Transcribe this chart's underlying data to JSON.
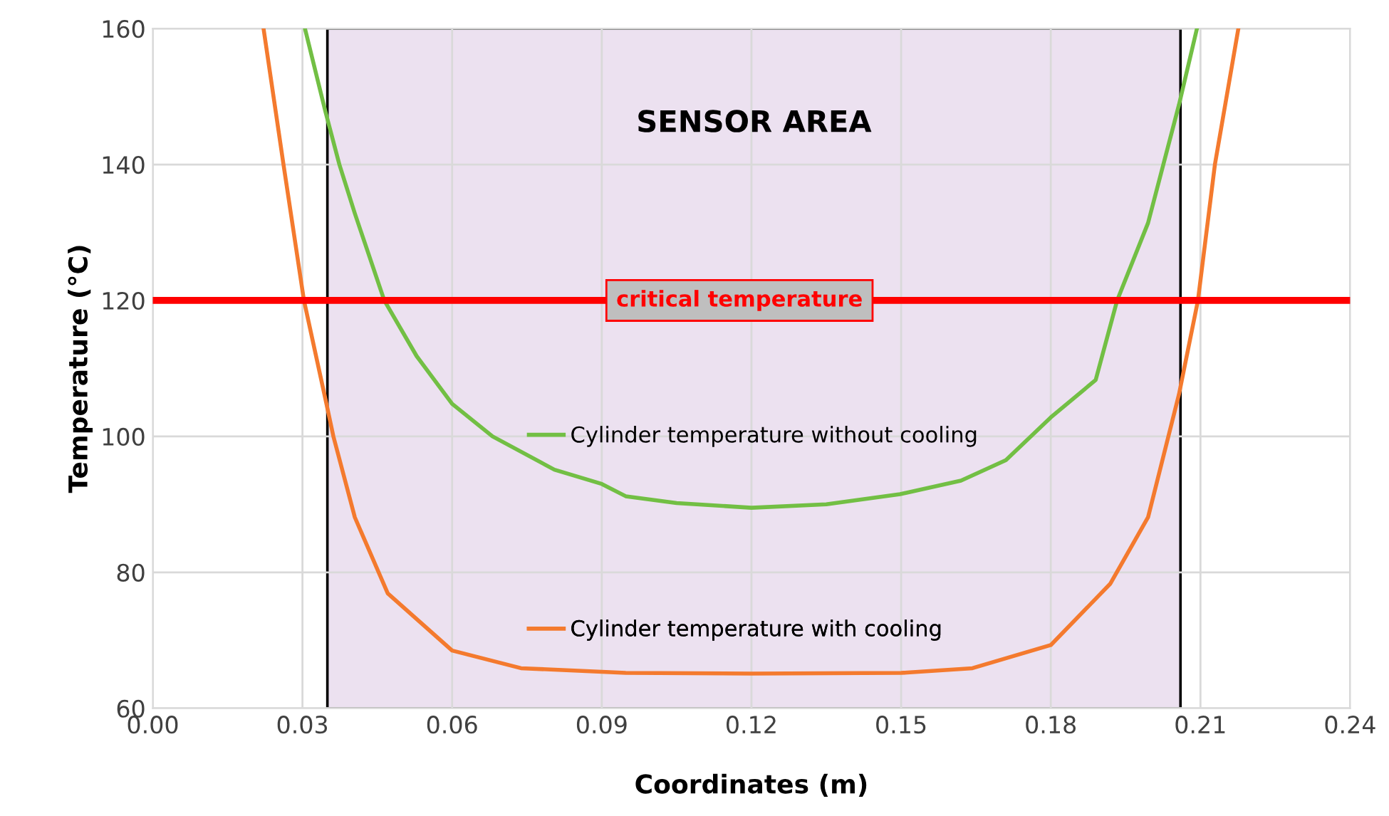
{
  "chart_data": {
    "type": "line",
    "xlabel": "Coordinates (m)",
    "ylabel": "Temperature (°C)",
    "xlim": [
      0,
      0.24
    ],
    "xticks": [
      {
        "value": 0,
        "label": "0.00"
      },
      {
        "value": 0.03,
        "label": "0.03"
      },
      {
        "value": 0.06,
        "label": "0.06"
      },
      {
        "value": 0.09,
        "label": "0.09"
      },
      {
        "value": 0.12,
        "label": "0.12"
      },
      {
        "value": 0.15,
        "label": "0.15"
      },
      {
        "value": 0.18,
        "label": "0.18"
      },
      {
        "value": 0.21,
        "label": "0.21"
      },
      {
        "value": 0.24,
        "label": "0.24"
      }
    ],
    "ylim": [
      60,
      160
    ],
    "yticks": [
      60,
      80,
      100,
      120,
      140,
      160
    ],
    "grid": true,
    "legend": "center",
    "marker": "none",
    "line_style": "solid",
    "series": [
      {
        "name": "Cylinder temperature without cooling",
        "color": "#72bf44",
        "x": [
          0.0305,
          0.0346,
          0.0374,
          0.0405,
          0.0464,
          0.0529,
          0.06,
          0.0681,
          0.0805,
          0.09,
          0.0948,
          0.105,
          0.12,
          0.135,
          0.1498,
          0.162,
          0.171,
          0.18,
          0.189,
          0.1933,
          0.1995,
          0.2057,
          0.2093
        ],
        "values": [
          160,
          147.8,
          140,
          132.8,
          120,
          111.8,
          104.8,
          100,
          95.1,
          93,
          91.2,
          90.2,
          89.5,
          90,
          91.5,
          93.5,
          96.5,
          102.8,
          108.3,
          120,
          131.4,
          148.8,
          160
        ]
      },
      {
        "name": "Cylinder temperature with cooling",
        "color": "#f47a2e",
        "x": [
          0.0222,
          0.0262,
          0.0303,
          0.0346,
          0.0362,
          0.0405,
          0.0471,
          0.06,
          0.0738,
          0.0948,
          0.12,
          0.15,
          0.1643,
          0.18,
          0.1919,
          0.1995,
          0.2057,
          0.2095,
          0.2129,
          0.2176
        ],
        "values": [
          160,
          140,
          120,
          105.5,
          100,
          88.1,
          76.9,
          68.5,
          65.9,
          65.2,
          65.1,
          65.2,
          65.9,
          69.3,
          78.3,
          88.1,
          106.2,
          120,
          140,
          160
        ]
      }
    ],
    "ref_lines": [
      {
        "axis": "y",
        "value": 120,
        "label": "critical temperature",
        "color": "#ff0000"
      }
    ],
    "bands": [
      {
        "axis": "x",
        "from": 0.035,
        "to": 0.206,
        "label": "SENSOR AREA",
        "color": "#ece1f0"
      }
    ]
  }
}
